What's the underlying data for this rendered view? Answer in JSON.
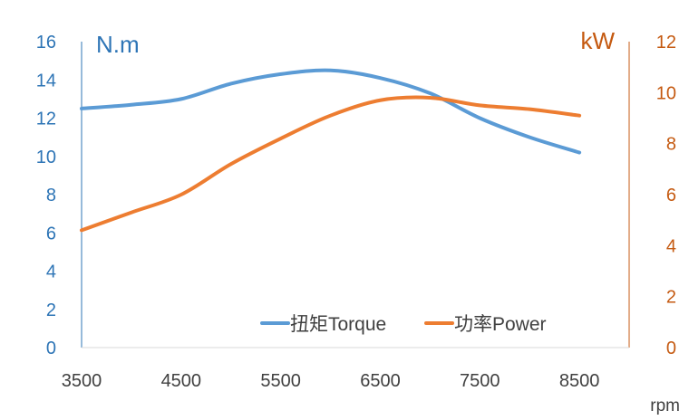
{
  "chart_data": {
    "type": "line",
    "x": [
      3500,
      4000,
      4500,
      5000,
      5500,
      6000,
      6500,
      7000,
      7500,
      8000,
      8500
    ],
    "x_ticks": [
      3500,
      4500,
      5500,
      6500,
      7500,
      8500
    ],
    "xlim": [
      3500,
      9000
    ],
    "xlabel": "rpm",
    "y_left": {
      "unit": "N.m",
      "ylim": [
        0,
        16
      ],
      "ticks": [
        0,
        2,
        4,
        6,
        8,
        10,
        12,
        14,
        16
      ]
    },
    "y_right": {
      "unit": "kW",
      "ylim": [
        0,
        12
      ],
      "ticks": [
        0,
        2,
        4,
        6,
        8,
        10,
        12
      ]
    },
    "series": [
      {
        "name": "扭矩Torque",
        "axis": "left",
        "values": [
          12.5,
          12.7,
          13.0,
          13.8,
          14.3,
          14.5,
          14.1,
          13.3,
          12.0,
          11.0,
          10.2
        ],
        "color": "#5B9BD5"
      },
      {
        "name": "功率Power",
        "axis": "right",
        "values": [
          4.6,
          5.3,
          6.0,
          7.2,
          8.2,
          9.1,
          9.7,
          9.8,
          9.5,
          9.35,
          9.1
        ],
        "color": "#ED7D31"
      }
    ],
    "legend_position": "bottom-right",
    "grid": false,
    "colors": {
      "left_axis": "#2E75B6",
      "right_axis": "#C55A11",
      "axis_line": "#D9D9D9",
      "text": "#404040"
    }
  }
}
